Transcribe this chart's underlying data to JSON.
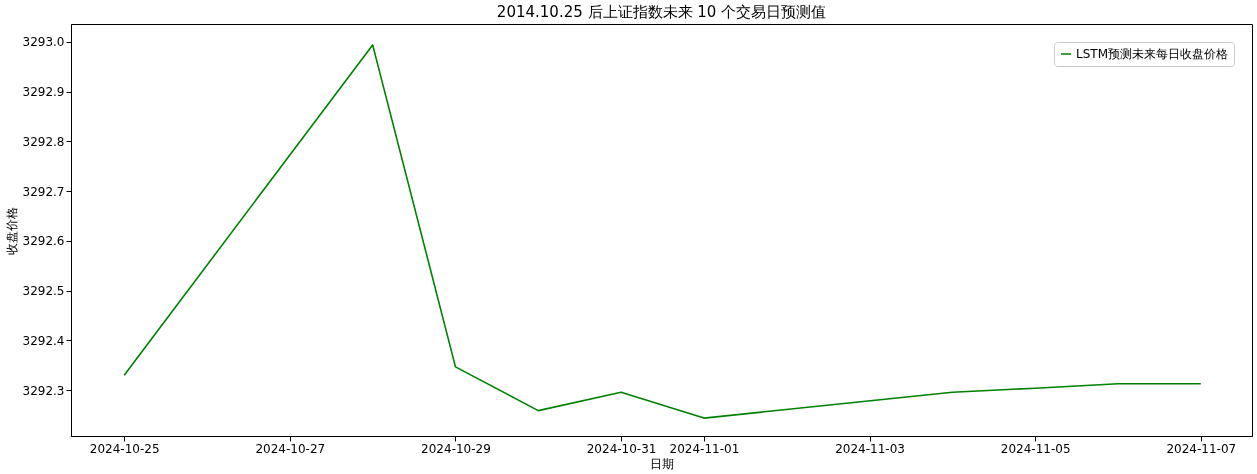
{
  "chart_data": {
    "type": "line",
    "title": "2014.10.25 后上证指数未来 10 个交易日预测值",
    "xlabel": "日期",
    "ylabel": "收盘价格",
    "x": [
      "2024-10-25",
      "2024-10-28",
      "2024-10-29",
      "2024-10-30",
      "2024-10-31",
      "2024-11-01",
      "2024-11-04",
      "2024-11-05",
      "2024-11-06",
      "2024-11-07"
    ],
    "series": [
      {
        "name": "LSTM预测未来每日收盘价格",
        "color": "#008000",
        "values": [
          3292.33,
          3292.994,
          3292.347,
          3292.259,
          3292.296,
          3292.244,
          3292.296,
          3292.304,
          3292.313,
          3292.313
        ]
      }
    ],
    "xlim": [
      "2024-10-24T08:35",
      "2024-11-07T14:50"
    ],
    "xticks": [
      {
        "value": "2024-10-25",
        "label": "2024-10-25"
      },
      {
        "value": "2024-10-27",
        "label": "2024-10-27"
      },
      {
        "value": "2024-10-29",
        "label": "2024-10-29"
      },
      {
        "value": "2024-10-31",
        "label": "2024-10-31"
      },
      {
        "value": "2024-11-01",
        "label": "2024-11-01"
      },
      {
        "value": "2024-11-03",
        "label": "2024-11-03"
      },
      {
        "value": "2024-11-05",
        "label": "2024-11-05"
      },
      {
        "value": "2024-11-07",
        "label": "2024-11-07"
      }
    ],
    "ylim": [
      3292.208,
      3293.036
    ],
    "yticks": [
      {
        "value": 3292.3,
        "label": "3292.3"
      },
      {
        "value": 3292.4,
        "label": "3292.4"
      },
      {
        "value": 3292.5,
        "label": "3292.5"
      },
      {
        "value": 3292.6,
        "label": "3292.6"
      },
      {
        "value": 3292.7,
        "label": "3292.7"
      },
      {
        "value": 3292.8,
        "label": "3292.8"
      },
      {
        "value": 3292.9,
        "label": "3292.9"
      },
      {
        "value": 3293.0,
        "label": "3293.0"
      }
    ],
    "legend": "top right",
    "grid": false,
    "marker": "none",
    "line_style": "solid"
  }
}
